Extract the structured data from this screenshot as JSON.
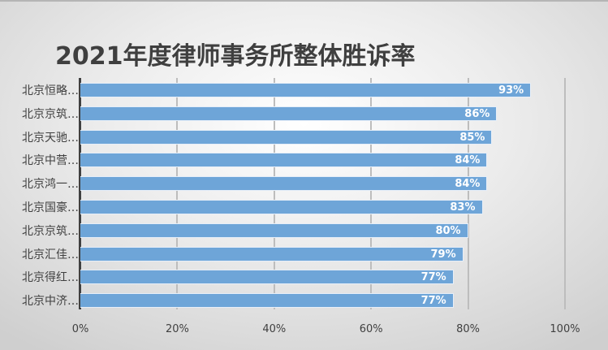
{
  "chart_data": {
    "type": "bar",
    "orientation": "horizontal",
    "title": "2021年度律师事务所整体胜诉率",
    "categories": [
      "北京恒略…",
      "北京京筑…",
      "北京天驰…",
      "北京中营…",
      "北京鸿一…",
      "北京国豪…",
      "北京京筑…",
      "北京汇佳…",
      "北京得红…",
      "北京中济…"
    ],
    "values": [
      93,
      86,
      85,
      84,
      84,
      83,
      80,
      79,
      77,
      77
    ],
    "value_labels": [
      "93%",
      "86%",
      "85%",
      "84%",
      "84%",
      "83%",
      "80%",
      "79%",
      "77%",
      "77%"
    ],
    "xlabel": "",
    "ylabel": "",
    "xlim": [
      0,
      100
    ],
    "x_ticks": [
      "0%",
      "20%",
      "40%",
      "60%",
      "80%",
      "100%"
    ],
    "grid": true,
    "legend": "none",
    "colors": {
      "bar": "#6ea5d8",
      "label": "#ffffff",
      "text": "#404040"
    }
  }
}
